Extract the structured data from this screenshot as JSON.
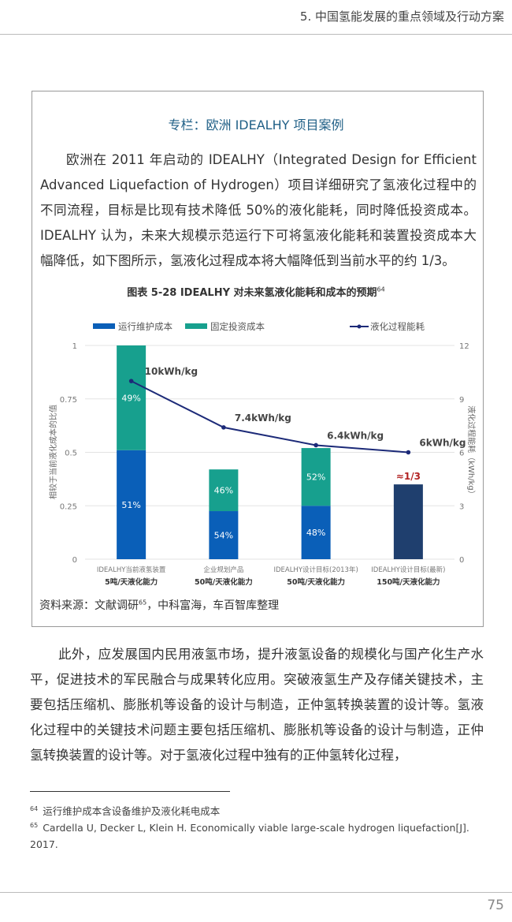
{
  "header": {
    "section_title": "5. 中国氢能发展的重点领域及行动方案"
  },
  "box": {
    "title": "专栏：欧洲 IDEALHY 项目案例",
    "paragraph": "欧洲在 2011 年启动的 IDEALHY（Integrated Design for Efficient Advanced Liquefaction of Hydrogen）项目详细研究了氢液化过程中的不同流程，目标是比现有技术降低 50%的液化能耗，同时降低投资成本。IDEALHY 认为，未来大规模示范运行下可将氢液化能耗和装置投资成本大幅降低，如下图所示，氢液化过程成本将大幅降低到当前水平的约 1/3。",
    "chart_caption": "图表 5-28 IDEALHY 对未来氢液化能耗和成本的预期",
    "chart_caption_ref": "64",
    "source_prefix": "资料来源：文献调研",
    "source_ref": "65",
    "source_suffix": "，中科富海，车百智库整理"
  },
  "chart_data": {
    "type": "bar",
    "stacked": true,
    "categories": [
      {
        "line1": "IDEALHY当前液氢装置",
        "line2": "5吨/天液化能力"
      },
      {
        "line1": "企业规划产品",
        "line2": "50吨/天液化能力"
      },
      {
        "line1": "IDEALHY设计目标(2013年)",
        "line2": "50吨/天液化能力"
      },
      {
        "line1": "IDEALHY设计目标(最新)",
        "line2": "150吨/天液化能力"
      }
    ],
    "series": [
      {
        "name": "运行维护成本",
        "color": "#0a5fb8",
        "values": [
          0.51,
          0.225,
          0.25,
          null
        ],
        "labels": [
          "51%",
          "54%",
          "48%",
          ""
        ]
      },
      {
        "name": "固定投资成本",
        "color": "#17a08e",
        "values": [
          0.49,
          0.195,
          0.27,
          null
        ],
        "labels": [
          "49%",
          "46%",
          "52%",
          ""
        ]
      }
    ],
    "total_only": {
      "values": [
        null,
        null,
        null,
        0.35
      ],
      "color": "#1f3f6e",
      "label": "≈1/3",
      "label_color": "#b22222"
    },
    "line_series": {
      "name": "液化过程能耗",
      "color": "#1c2a78",
      "values": [
        10,
        7.4,
        6.4,
        6
      ],
      "labels": [
        "10kWh/kg",
        "7.4kWh/kg",
        "6.4kWh/kg",
        "6kWh/kg"
      ]
    },
    "ylabel": "相较于当前液化成本的比值",
    "y2label": "液化过程能耗（kWh/kg）",
    "ylim": [
      0,
      1
    ],
    "y2lim": [
      0,
      12
    ],
    "yticks": [
      "0",
      "0.25",
      "0.5",
      "0.75",
      "1"
    ],
    "y2ticks": [
      "0",
      "3",
      "6",
      "9",
      "12"
    ],
    "grid": true,
    "legend": "top"
  },
  "body": {
    "paragraph": "此外，应发展国内民用液氢市场，提升液氢设备的规模化与国产化生产水平，促进技术的军民融合与成果转化应用。突破液氢生产及存储关键技术，主要包括压缩机、膨胀机等设备的设计与制造，正仲氢转换装置的设计等。氢液化过程中的关键技术问题主要包括压缩机、膨胀机等设备的设计与制造，正仲氢转换装置的设计等。对于氢液化过程中独有的正仲氢转化过程，"
  },
  "footnotes": [
    {
      "num": "64",
      "text": "运行维护成本含设备维护及液化耗电成本"
    },
    {
      "num": "65",
      "text": "Cardella U, Decker L, Klein H. Economically viable large-scale hydrogen liquefaction[J]. 2017."
    }
  ],
  "page_number": "75"
}
